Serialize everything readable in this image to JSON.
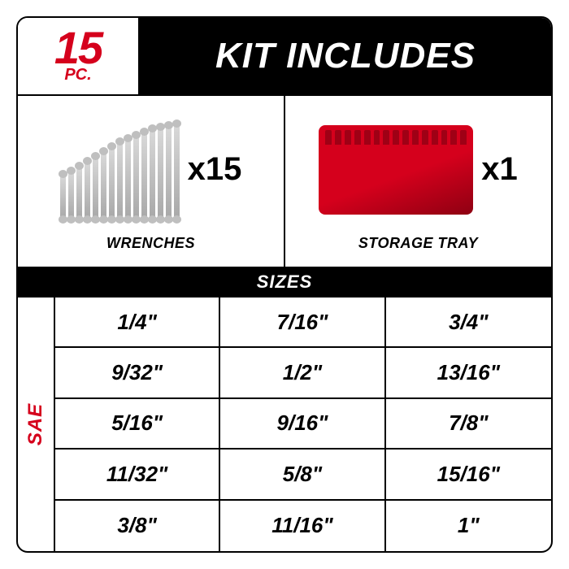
{
  "colors": {
    "brand_red": "#d5001c",
    "black": "#000000",
    "white": "#ffffff",
    "tray_red": "#d5001c",
    "tray_dark": "#8e0012"
  },
  "header": {
    "badge_number": "15",
    "badge_unit": "PC.",
    "title": "KIT INCLUDES"
  },
  "kit_items": [
    {
      "label": "WRENCHES",
      "qty": "x15",
      "type": "wrenches"
    },
    {
      "label": "STORAGE TRAY",
      "qty": "x1",
      "type": "tray"
    }
  ],
  "wrench_heights": [
    54,
    58,
    64,
    70,
    76,
    82,
    88,
    94,
    98,
    102,
    106,
    110,
    112,
    114,
    116
  ],
  "sizes_title": "SIZES",
  "unit_label": "SAE",
  "sizes": [
    [
      "1/4\"",
      "7/16\"",
      "3/4\""
    ],
    [
      "9/32\"",
      "1/2\"",
      "13/16\""
    ],
    [
      "5/16\"",
      "9/16\"",
      "7/8\""
    ],
    [
      "11/32\"",
      "5/8\"",
      "15/16\""
    ],
    [
      "3/8\"",
      "11/16\"",
      "1\""
    ]
  ]
}
